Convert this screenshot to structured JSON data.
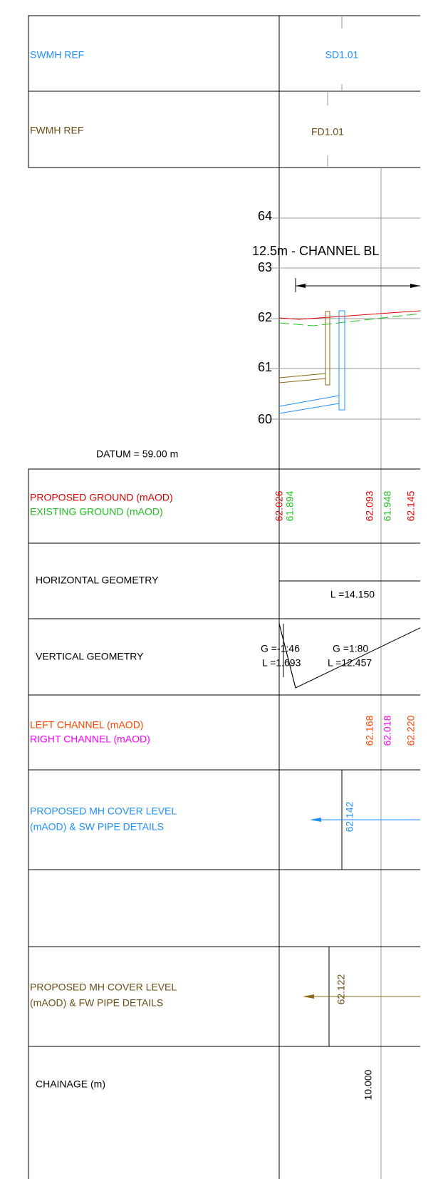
{
  "header": {
    "swmh_label": "SWMH REF",
    "swmh_ref": "SD1.01",
    "fwmh_label": "FWMH REF",
    "fwmh_ref": "FD1.01"
  },
  "profile": {
    "levels": [
      "64",
      "63",
      "62",
      "61",
      "60"
    ],
    "annotation": "12.5m - CHANNEL BL",
    "datum": "DATUM = 59.00 m"
  },
  "rows": {
    "ground": {
      "label_proposed": "PROPOSED GROUND (mAOD)",
      "label_existing": "EXISTING GROUND (mAOD)",
      "values": [
        "62.026",
        "61.894",
        "62.093",
        "61.948",
        "62.145"
      ]
    },
    "horizontal": {
      "label": "HORIZONTAL GEOMETRY",
      "length": "L =14.150"
    },
    "vertical": {
      "label": "VERTICAL GEOMETRY",
      "grade_1": "G =-1:46",
      "length_1": "L =1.693",
      "grade_2": "G =1:80",
      "length_2": "L =12.457"
    },
    "channel": {
      "label_left": "LEFT CHANNEL (mAOD)",
      "label_right": "RIGHT CHANNEL (mAOD)",
      "values": [
        "62.168",
        "62.018",
        "62.220"
      ]
    },
    "sw": {
      "label_1": "PROPOSED MH COVER LEVEL",
      "label_2": "(mAOD) & SW PIPE DETAILS",
      "cover": "62.142"
    },
    "fw": {
      "label_1": "PROPOSED MH COVER LEVEL",
      "label_2": "(mAOD) & FW PIPE DETAILS",
      "cover": "62.122"
    },
    "chainage": {
      "label": "CHAINAGE (m)",
      "value": "10.000"
    }
  }
}
